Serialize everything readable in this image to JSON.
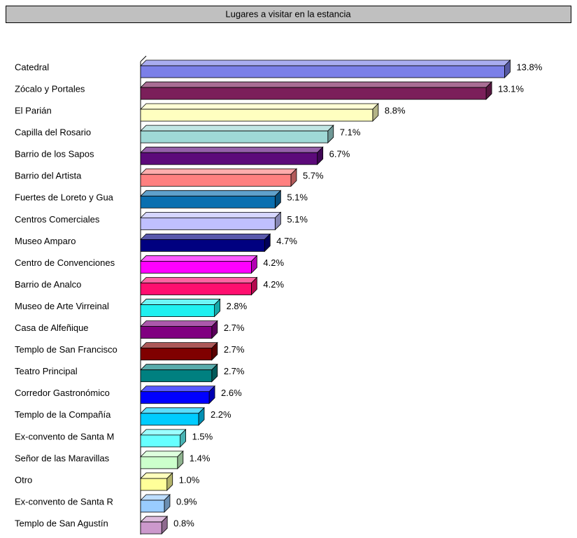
{
  "chart_data": {
    "type": "bar3d",
    "orientation": "horizontal",
    "title": "Lugares a visitar en la estancia",
    "categories": [
      "Catedral",
      "Zócalo y Portales",
      "El Parián",
      "Capilla del Rosario",
      "Barrio de los Sapos",
      "Barrio del Artista",
      "Fuertes de Loreto y Gua",
      "Centros Comerciales",
      "Museo Amparo",
      "Centro de Convenciones",
      "Barrio de Analco",
      "Museo de Arte Virreinal",
      "Casa de Alfeñique",
      "Templo de San Francisco",
      "Teatro Principal",
      "Corredor Gastronómico",
      "Templo de la Compañía",
      "Ex-convento de Santa M",
      "Señor de las Maravillas",
      "Otro",
      "Ex-convento de Santa R",
      "Templo de San Agustín"
    ],
    "values": [
      13.8,
      13.1,
      8.8,
      7.1,
      6.7,
      5.7,
      5.1,
      5.1,
      4.7,
      4.2,
      4.2,
      2.8,
      2.7,
      2.7,
      2.7,
      2.6,
      2.2,
      1.5,
      1.4,
      1.0,
      0.9,
      0.8
    ],
    "value_labels": [
      "13.8%",
      "13.1%",
      "8.8%",
      "7.1%",
      "6.7%",
      "5.7%",
      "5.1%",
      "5.1%",
      "4.7%",
      "4.2%",
      "4.2%",
      "2.8%",
      "2.7%",
      "2.7%",
      "2.7%",
      "2.6%",
      "2.2%",
      "1.5%",
      "1.4%",
      "1.0%",
      "0.9%",
      "0.8%"
    ],
    "colors": [
      "#7b7fe8",
      "#7b1f5a",
      "#ffffc0",
      "#9fd9d6",
      "#5c0a7a",
      "#ff8080",
      "#0a6fb0",
      "#c0c0ff",
      "#000080",
      "#ff00ff",
      "#ff0f6f",
      "#20f0f0",
      "#800080",
      "#800000",
      "#008080",
      "#0000ff",
      "#00ccff",
      "#66ffff",
      "#ccffcc",
      "#ffff99",
      "#99ccff",
      "#cc99cc"
    ],
    "xlim": [
      0,
      14
    ]
  }
}
